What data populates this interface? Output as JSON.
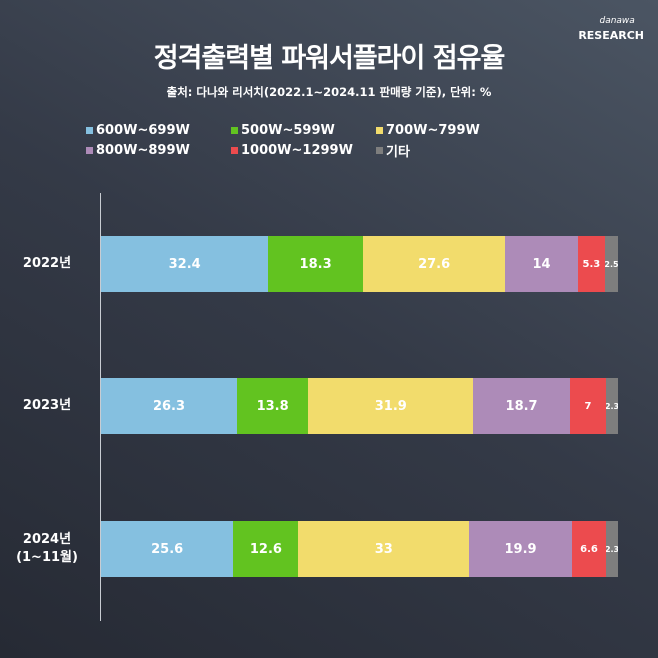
{
  "logo": {
    "small": "danawa",
    "big": "RESEARCH"
  },
  "chart_data": {
    "type": "bar",
    "orientation": "horizontal-stacked-100",
    "title": "정격출력별 파워서플라이 점유율",
    "subtitle": "출처: 다나와 리서치(2022.1~2024.11 판매량 기준), 단위: %",
    "legend_position": "top",
    "categories": [
      "2022년",
      "2023년",
      "2024년\n(1~11월)"
    ],
    "category_lines": [
      [
        "2022년"
      ],
      [
        "2023년"
      ],
      [
        "2024년",
        "(1~11월)"
      ]
    ],
    "series": [
      {
        "name": "600W~699W",
        "color": "#85c0e0",
        "values": [
          32.4,
          26.3,
          25.6
        ]
      },
      {
        "name": "500W~599W",
        "color": "#62c320",
        "values": [
          18.3,
          13.8,
          12.6
        ]
      },
      {
        "name": "700W~799W",
        "color": "#f2dc6c",
        "values": [
          27.6,
          31.9,
          33
        ]
      },
      {
        "name": "800W~899W",
        "color": "#ad8bb8",
        "values": [
          14,
          18.7,
          19.9
        ]
      },
      {
        "name": "1000W~1299W",
        "color": "#ec4b4e",
        "values": [
          5.3,
          7,
          6.6
        ]
      },
      {
        "name": "기타",
        "color": "#7e7e7e",
        "values": [
          2.5,
          2.3,
          2.3
        ]
      }
    ],
    "xlim": [
      0,
      100
    ]
  }
}
